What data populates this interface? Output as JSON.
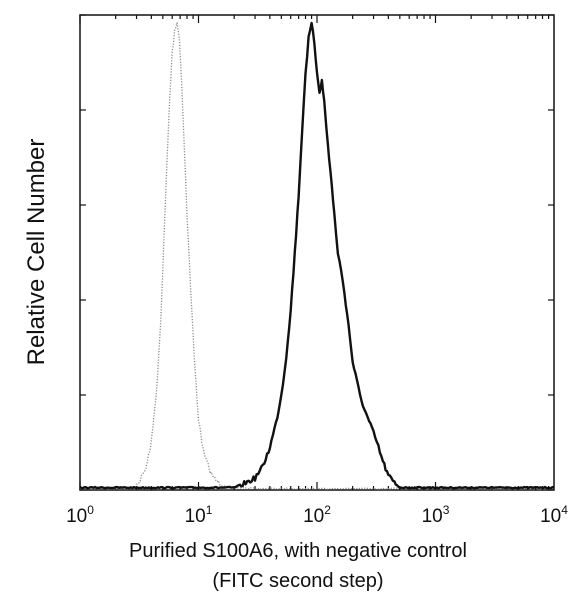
{
  "chart_data": {
    "type": "line",
    "title": "",
    "xlabel_line1": "Purified S100A6, with negative control",
    "xlabel_line2": "(FITC second step)",
    "ylabel": "Relative Cell Number",
    "x_scale": "log",
    "xlim": [
      1,
      10000
    ],
    "ylim": [
      0,
      100
    ],
    "x_ticks": [
      {
        "base": "10",
        "exp": "0",
        "value": 1
      },
      {
        "base": "10",
        "exp": "1",
        "value": 10
      },
      {
        "base": "10",
        "exp": "2",
        "value": 100
      },
      {
        "base": "10",
        "exp": "3",
        "value": 1000
      },
      {
        "base": "10",
        "exp": "4",
        "value": 10000
      }
    ],
    "y_ticks": [
      0,
      20,
      40,
      60,
      80,
      100
    ],
    "grid": false,
    "legend": "none",
    "series": [
      {
        "style": "dotted",
        "color": "#8a8a8a",
        "points": [
          [
            1.0,
            0.3
          ],
          [
            2.0,
            0.3
          ],
          [
            2.8,
            0.5
          ],
          [
            3.2,
            2.0
          ],
          [
            3.6,
            4.5
          ],
          [
            4.0,
            10.0
          ],
          [
            4.4,
            20.0
          ],
          [
            4.8,
            35.0
          ],
          [
            5.1,
            52.0
          ],
          [
            5.4,
            68.0
          ],
          [
            5.7,
            82.0
          ],
          [
            6.0,
            92.0
          ],
          [
            6.3,
            97.0
          ],
          [
            6.6,
            98.5
          ],
          [
            6.9,
            95.0
          ],
          [
            7.2,
            86.0
          ],
          [
            7.6,
            72.0
          ],
          [
            8.0,
            58.0
          ],
          [
            8.6,
            42.0
          ],
          [
            9.2,
            28.0
          ],
          [
            10.0,
            15.0
          ],
          [
            11.0,
            8.0
          ],
          [
            12.5,
            4.0
          ],
          [
            14.0,
            2.0
          ],
          [
            16.0,
            1.0
          ],
          [
            20.0,
            0.5
          ],
          [
            30.0,
            0.3
          ],
          [
            10000.0,
            0.3
          ]
        ]
      },
      {
        "style": "solid",
        "color": "#111111",
        "points": [
          [
            1.0,
            0.5
          ],
          [
            20.0,
            0.5
          ],
          [
            25.0,
            1.5
          ],
          [
            30.0,
            2.5
          ],
          [
            35.0,
            5.0
          ],
          [
            40.0,
            9.0
          ],
          [
            45.0,
            14.0
          ],
          [
            50.0,
            20.0
          ],
          [
            55.0,
            28.0
          ],
          [
            60.0,
            38.0
          ],
          [
            65.0,
            50.0
          ],
          [
            70.0,
            62.0
          ],
          [
            75.0,
            76.0
          ],
          [
            80.0,
            88.0
          ],
          [
            85.0,
            95.0
          ],
          [
            90.0,
            98.0
          ],
          [
            95.0,
            94.0
          ],
          [
            100.0,
            88.0
          ],
          [
            105.0,
            84.0
          ],
          [
            110.0,
            86.0
          ],
          [
            115.0,
            82.0
          ],
          [
            120.0,
            76.0
          ],
          [
            130.0,
            67.0
          ],
          [
            140.0,
            58.0
          ],
          [
            150.0,
            50.0
          ],
          [
            165.0,
            44.0
          ],
          [
            180.0,
            37.0
          ],
          [
            200.0,
            27.0
          ],
          [
            230.0,
            20.0
          ],
          [
            260.0,
            16.0
          ],
          [
            300.0,
            12.0
          ],
          [
            330.0,
            9.0
          ],
          [
            360.0,
            6.0
          ],
          [
            400.0,
            3.0
          ],
          [
            450.0,
            1.5
          ],
          [
            500.0,
            0.5
          ],
          [
            10000.0,
            0.5
          ]
        ]
      }
    ]
  }
}
